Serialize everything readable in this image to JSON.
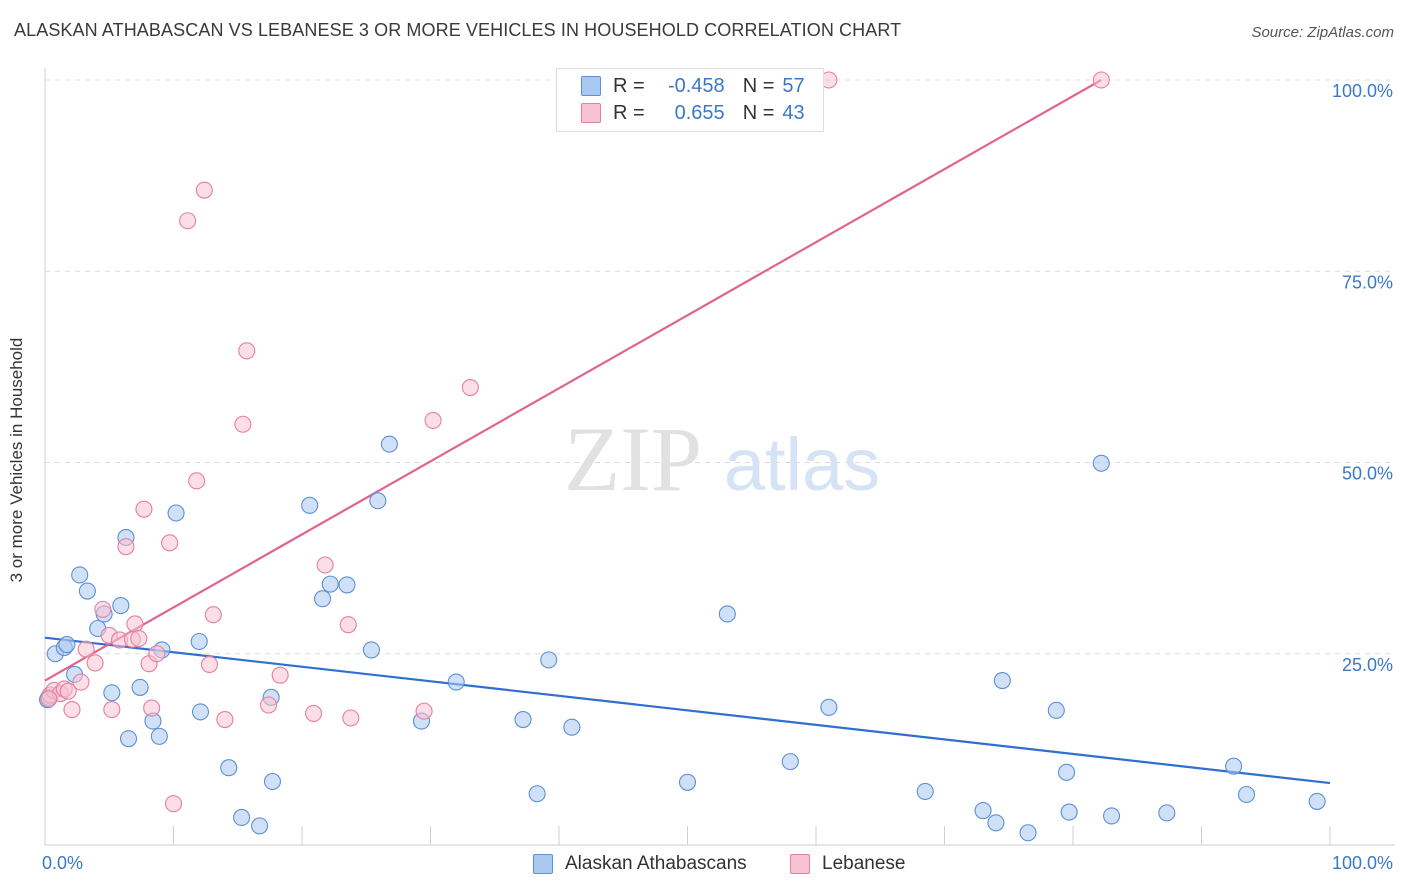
{
  "title": "ALASKAN ATHABASCAN VS LEBANESE 3 OR MORE VEHICLES IN HOUSEHOLD CORRELATION CHART",
  "source": "Source: ZipAtlas.com",
  "watermark": {
    "zip": "ZIP",
    "atlas": "atlas"
  },
  "legend": {
    "rows": [
      {
        "r_label": "R =",
        "r_value": "-0.458",
        "n_label": "N =",
        "n_value": "57"
      },
      {
        "r_label": "R =",
        "r_value": "0.655",
        "n_label": "N =",
        "n_value": "43"
      }
    ]
  },
  "bottom_legend": [
    "Alaskan Athabascans",
    "Lebanese"
  ],
  "colors": {
    "blue_fill": "#a9c8f0",
    "blue_stroke": "#5b8fd6",
    "blue_line": "#2f6fd0",
    "pink_fill": "#f7c3d2",
    "pink_stroke": "#e67fa0",
    "pink_line": "#e0648e",
    "tick_label": "#3a78c9",
    "grid": "#dcdcdc"
  },
  "chart_data": {
    "type": "scatter",
    "title": "ALASKAN ATHABASCAN VS LEBANESE 3 OR MORE VEHICLES IN HOUSEHOLD CORRELATION CHART",
    "xlabel": "",
    "ylabel": "3 or more Vehicles in Household",
    "xlim": [
      0,
      100
    ],
    "ylim": [
      0,
      100
    ],
    "x_tick_labels": [
      "0.0%",
      "100.0%"
    ],
    "y_ticks": [
      25,
      50,
      75,
      100
    ],
    "y_tick_labels": [
      "25.0%",
      "50.0%",
      "75.0%",
      "100.0%"
    ],
    "grid": true,
    "legend_position": "top-center",
    "series": [
      {
        "name": "Alaskan Athabascans",
        "points": [
          [
            0.3,
            19.3
          ],
          [
            0.8,
            25
          ],
          [
            1.5,
            25.8
          ],
          [
            1.7,
            26.2
          ],
          [
            2.3,
            22.3
          ],
          [
            2.7,
            35.3
          ],
          [
            3.3,
            33.2
          ],
          [
            4.1,
            28.3
          ],
          [
            4.6,
            30.2
          ],
          [
            5.2,
            19.9
          ],
          [
            5.9,
            31.3
          ],
          [
            6.3,
            40.2
          ],
          [
            6.5,
            13.9
          ],
          [
            7.4,
            20.6
          ],
          [
            8.4,
            16.2
          ],
          [
            8.9,
            14.2
          ],
          [
            9.1,
            25.5
          ],
          [
            10.2,
            43.4
          ],
          [
            12.0,
            26.6
          ],
          [
            12.1,
            17.4
          ],
          [
            14.3,
            10.1
          ],
          [
            15.3,
            3.6
          ],
          [
            16.7,
            2.5
          ],
          [
            17.6,
            19.3
          ],
          [
            17.7,
            8.3
          ],
          [
            20.6,
            44.4
          ],
          [
            21.6,
            32.2
          ],
          [
            22.2,
            34.1
          ],
          [
            23.5,
            34.0
          ],
          [
            25.4,
            25.5
          ],
          [
            25.9,
            45.0
          ],
          [
            26.8,
            52.4
          ],
          [
            29.3,
            16.2
          ],
          [
            32.0,
            21.3
          ],
          [
            37.2,
            16.4
          ],
          [
            38.3,
            6.7
          ],
          [
            39.2,
            24.2
          ],
          [
            41.0,
            15.4
          ],
          [
            50.0,
            8.2
          ],
          [
            53.1,
            30.2
          ],
          [
            58.0,
            10.9
          ],
          [
            61.0,
            18.0
          ],
          [
            68.5,
            7.0
          ],
          [
            73.0,
            4.5
          ],
          [
            74.0,
            2.9
          ],
          [
            74.5,
            21.5
          ],
          [
            76.5,
            1.6
          ],
          [
            78.7,
            17.6
          ],
          [
            79.5,
            9.5
          ],
          [
            79.7,
            4.3
          ],
          [
            82.2,
            49.9
          ],
          [
            83.0,
            3.8
          ],
          [
            87.3,
            4.2
          ],
          [
            92.5,
            10.3
          ],
          [
            93.5,
            6.6
          ],
          [
            99.0,
            5.7
          ],
          [
            0.2,
            19.0
          ]
        ]
      },
      {
        "name": "Lebanese",
        "points": [
          [
            0.4,
            19.6
          ],
          [
            0.7,
            20.2
          ],
          [
            1.2,
            19.8
          ],
          [
            1.5,
            20.4
          ],
          [
            1.8,
            20.1
          ],
          [
            2.1,
            17.7
          ],
          [
            2.8,
            21.3
          ],
          [
            3.2,
            25.6
          ],
          [
            3.9,
            23.8
          ],
          [
            4.5,
            30.8
          ],
          [
            5.0,
            27.4
          ],
          [
            5.2,
            17.7
          ],
          [
            5.8,
            26.8
          ],
          [
            6.3,
            39.0
          ],
          [
            6.8,
            26.9
          ],
          [
            7.0,
            28.9
          ],
          [
            7.3,
            27.0
          ],
          [
            7.7,
            43.9
          ],
          [
            8.1,
            23.7
          ],
          [
            8.3,
            17.9
          ],
          [
            8.7,
            25.0
          ],
          [
            9.7,
            39.5
          ],
          [
            11.1,
            81.6
          ],
          [
            11.8,
            47.6
          ],
          [
            12.4,
            85.6
          ],
          [
            12.8,
            23.6
          ],
          [
            13.1,
            30.1
          ],
          [
            14.0,
            16.4
          ],
          [
            15.4,
            55.0
          ],
          [
            15.7,
            64.6
          ],
          [
            17.4,
            18.3
          ],
          [
            18.3,
            22.2
          ],
          [
            20.9,
            17.2
          ],
          [
            21.8,
            36.6
          ],
          [
            23.6,
            28.8
          ],
          [
            23.8,
            16.6
          ],
          [
            29.5,
            17.5
          ],
          [
            30.2,
            55.5
          ],
          [
            33.1,
            59.8
          ],
          [
            61.0,
            100
          ],
          [
            82.2,
            100
          ],
          [
            10.0,
            5.4
          ],
          [
            0.3,
            19.1
          ]
        ]
      }
    ],
    "trendlines": [
      {
        "series": "Alaskan Athabascans",
        "x": [
          0,
          100
        ],
        "y": [
          27.1,
          8.1
        ]
      },
      {
        "series": "Lebanese",
        "x": [
          0,
          82.2
        ],
        "y": [
          21.5,
          100
        ]
      }
    ]
  }
}
